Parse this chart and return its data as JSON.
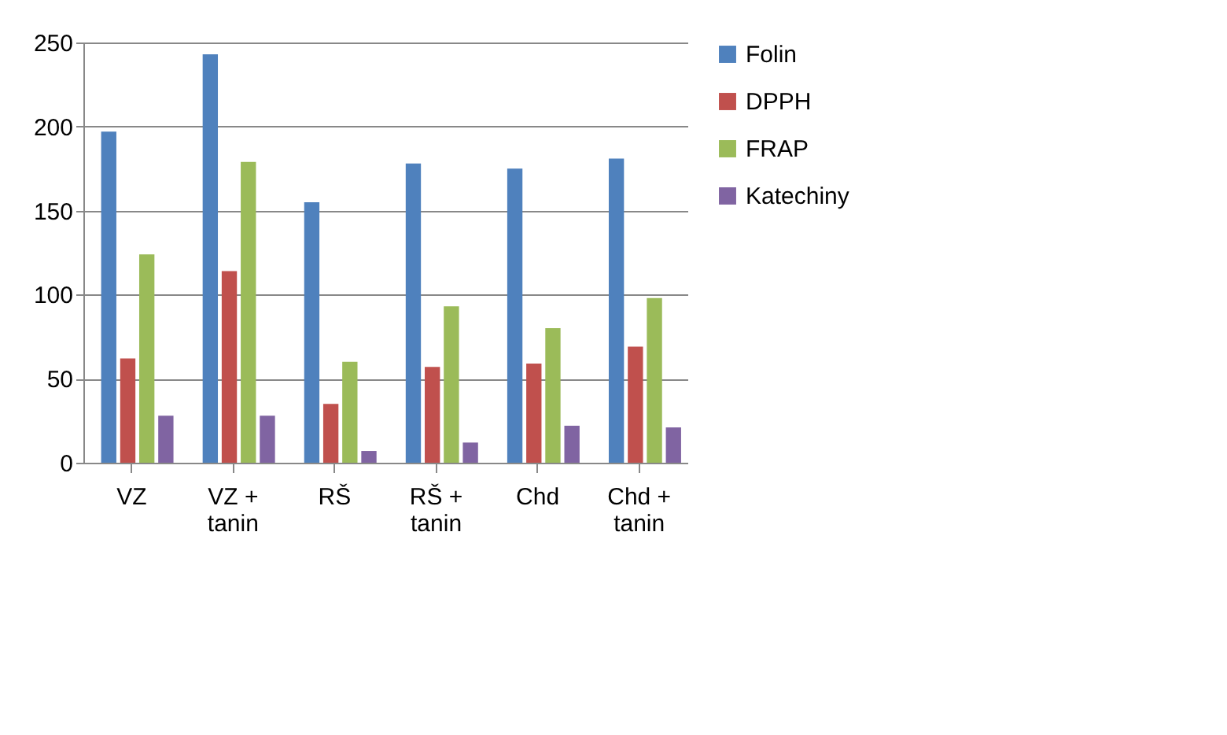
{
  "chart_data": {
    "type": "bar",
    "categories": [
      "VZ",
      "VZ + tanin",
      "RŠ",
      "RŠ + tanin",
      "Chd",
      "Chd + tanin"
    ],
    "series": [
      {
        "name": "Folin",
        "color": "#4f81bd",
        "values": [
          197,
          243,
          155,
          178,
          175,
          181
        ]
      },
      {
        "name": "DPPH",
        "color": "#c0504d",
        "values": [
          62,
          114,
          35,
          57,
          59,
          69
        ]
      },
      {
        "name": "FRAP",
        "color": "#9bbb59",
        "values": [
          124,
          179,
          60,
          93,
          80,
          98
        ]
      },
      {
        "name": "Katechiny",
        "color": "#8064a2",
        "values": [
          28,
          28,
          7,
          12,
          22,
          21
        ]
      }
    ],
    "ylim": [
      0,
      250
    ],
    "yticks": [
      0,
      50,
      100,
      150,
      200,
      250
    ],
    "grid": "y",
    "legend": "right"
  }
}
